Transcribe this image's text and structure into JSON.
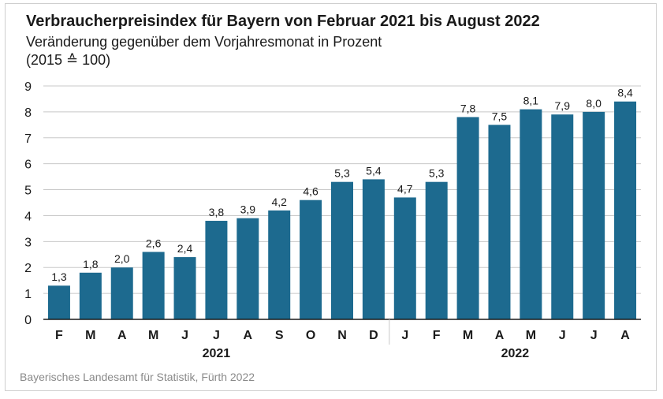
{
  "title": "Verbraucherpreisindex für Bayern von Februar 2021 bis August 2022",
  "subtitle": "Veränderung gegenüber dem Vorjahresmonat in Prozent",
  "subtitle2": "(2015 ≙ 100)",
  "source": "Bayerisches Landesamt für Statistik, Fürth 2022",
  "colors": {
    "bar": "#1d6a8f",
    "grid": "#c8c8c8",
    "axis": "#1a1a1a"
  },
  "chart_data": {
    "type": "bar",
    "categories": [
      "F",
      "M",
      "A",
      "M",
      "J",
      "J",
      "A",
      "S",
      "O",
      "N",
      "D",
      "J",
      "F",
      "M",
      "A",
      "M",
      "J",
      "J",
      "A"
    ],
    "values": [
      1.3,
      1.8,
      2.0,
      2.6,
      2.4,
      3.8,
      3.9,
      4.2,
      4.6,
      5.3,
      5.4,
      4.7,
      5.3,
      7.8,
      7.5,
      8.1,
      7.9,
      8.0,
      8.4
    ],
    "value_labels": [
      "1,3",
      "1,8",
      "2,0",
      "2,6",
      "2,4",
      "3,8",
      "3,9",
      "4,2",
      "4,6",
      "5,3",
      "5,4",
      "4,7",
      "5,3",
      "7,8",
      "7,5",
      "8,1",
      "7,9",
      "8,0",
      "8,4"
    ],
    "groups": [
      {
        "label": "2021",
        "count": 11
      },
      {
        "label": "2022",
        "count": 8
      }
    ],
    "ylim": [
      0,
      9
    ],
    "yticks": [
      "0",
      "1",
      "2",
      "3",
      "4",
      "5",
      "6",
      "7",
      "8",
      "9"
    ],
    "grid": true,
    "xlabel": "",
    "ylabel": ""
  }
}
